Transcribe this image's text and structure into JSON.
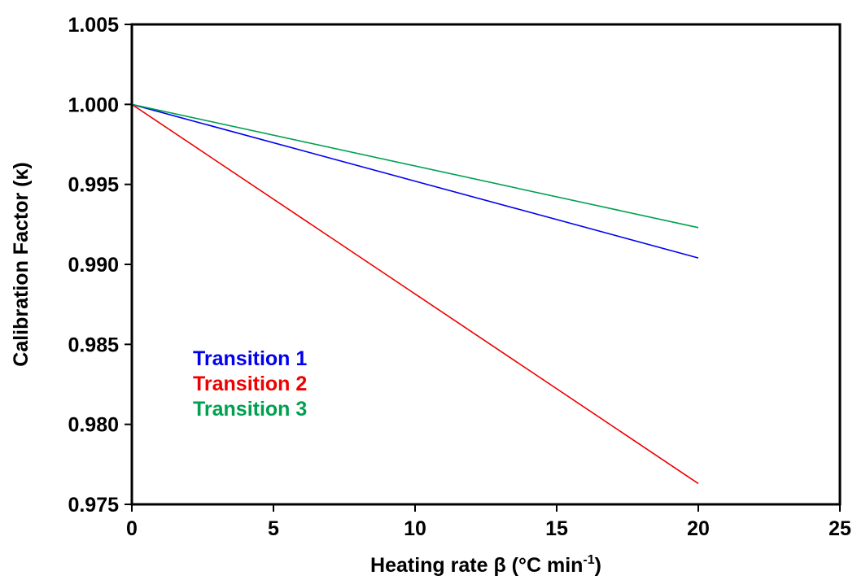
{
  "chart_data": {
    "type": "line",
    "title": "",
    "xlabel": "Heating rate β (°C min",
    "xlabel_sup": "-1",
    "xlabel_suffix": ")",
    "ylabel": "Calibration Factor (κ)",
    "xlim": [
      0,
      25
    ],
    "ylim": [
      0.975,
      1.005
    ],
    "x_ticks": [
      0,
      5,
      10,
      15,
      20,
      25
    ],
    "x_tick_labels": [
      "0",
      "5",
      "10",
      "15",
      "20",
      "25"
    ],
    "y_ticks": [
      0.975,
      0.98,
      0.985,
      0.99,
      0.995,
      1.0,
      1.005
    ],
    "y_tick_labels": [
      "0.975",
      "0.980",
      "0.985",
      "0.990",
      "0.995",
      "1.000",
      "1.005"
    ],
    "grid": false,
    "legend_position": "lower-left",
    "series": [
      {
        "name": "Transition 1",
        "color": "#0000ee",
        "x": [
          0,
          20
        ],
        "y": [
          1.0,
          0.9904
        ]
      },
      {
        "name": "Transition 2",
        "color": "#ee0000",
        "x": [
          0,
          20
        ],
        "y": [
          1.0,
          0.9763
        ]
      },
      {
        "name": "Transition 3",
        "color": "#00a050",
        "x": [
          0,
          20
        ],
        "y": [
          1.0,
          0.9923
        ]
      }
    ]
  }
}
